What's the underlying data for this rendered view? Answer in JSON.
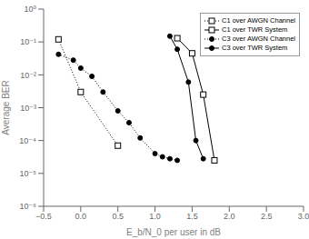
{
  "chart_data": {
    "type": "line",
    "title": "",
    "xlabel": "E_b/N_0 per user in dB",
    "ylabel": "Average BER",
    "log": "y",
    "grid": false,
    "legend": "upper right",
    "xlim": [
      -0.5,
      3.0
    ],
    "xticks": [
      {
        "value": -0.5,
        "label": "−0.5"
      },
      {
        "value": 0,
        "label": "0.0"
      },
      0.5,
      {
        "value": 1,
        "label": "1.0"
      },
      1.5,
      {
        "value": 2,
        "label": "2.0"
      },
      2.5,
      {
        "value": 3,
        "label": "3.0"
      }
    ],
    "ylim": [
      1e-06,
      1
    ],
    "yticks": [
      {
        "value": 1e-06,
        "label": "10⁻⁶"
      },
      {
        "value": 1e-05,
        "label": "10⁻⁵"
      },
      {
        "value": 0.0001,
        "label": "10⁻⁴"
      },
      {
        "value": 0.001,
        "label": "10⁻³"
      },
      {
        "value": 0.01,
        "label": "10⁻²"
      },
      {
        "value": 0.1,
        "label": "10⁻¹"
      },
      {
        "value": 1,
        "label": "10⁰"
      }
    ],
    "series": [
      {
        "name": "C1 over AWGN Channel",
        "color": "#000000",
        "line_style": "dotted",
        "marker": "square",
        "x": [
          -0.3,
          0.0,
          0.5
        ],
        "values": [
          0.12,
          0.003,
          7e-05
        ]
      },
      {
        "name": "C1 over TWR System",
        "color": "#000000",
        "line_style": "solid",
        "marker": "square",
        "x": [
          1.3,
          1.5,
          1.65,
          1.8
        ],
        "values": [
          0.13,
          0.045,
          0.0025,
          2.5e-05
        ]
      },
      {
        "name": "C3 over AWGN Channel",
        "color": "#000000",
        "line_style": "dotted",
        "marker": "circle",
        "x": [
          -0.3,
          -0.1,
          0.0,
          0.15,
          0.3,
          0.5,
          0.65,
          0.8,
          1.0,
          1.1,
          1.2,
          1.3
        ],
        "values": [
          0.042,
          0.028,
          0.016,
          0.009,
          0.003,
          0.0008,
          0.00035,
          0.00012,
          4e-05,
          3.2e-05,
          2.8e-05,
          2.5e-05
        ]
      },
      {
        "name": "C3 over TWR System",
        "color": "#000000",
        "line_style": "solid",
        "marker": "circle",
        "x": [
          1.2,
          1.3,
          1.45,
          1.55,
          1.65
        ],
        "values": [
          0.15,
          0.06,
          0.006,
          0.0001,
          2.8e-05
        ]
      }
    ]
  }
}
